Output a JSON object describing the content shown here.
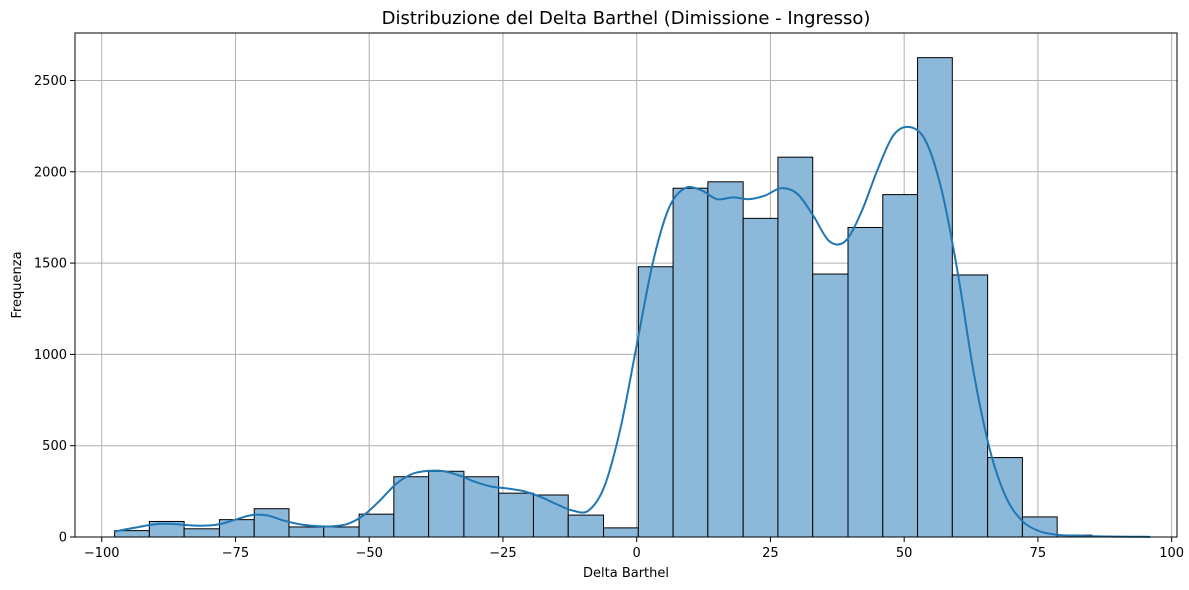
{
  "chart_data": {
    "type": "bar",
    "title": "Distribuzione del Delta Barthel (Dimissione - Ingresso)",
    "xlabel": "Delta Barthel",
    "ylabel": "Frequenza",
    "xlim": [
      -105,
      101
    ],
    "ylim": [
      0,
      2760
    ],
    "x_ticks": [
      -100,
      -75,
      -50,
      -25,
      0,
      25,
      50,
      75,
      100
    ],
    "x_tick_labels": [
      "−100",
      "−75",
      "−50",
      "−25",
      "0",
      "25",
      "50",
      "75",
      "100"
    ],
    "y_ticks": [
      0,
      500,
      1000,
      1500,
      2000,
      2500
    ],
    "y_tick_labels": [
      "0",
      "500",
      "1000",
      "1500",
      "2000",
      "2500"
    ],
    "grid": true,
    "bins": [
      {
        "x0": -97.6,
        "x1": -91.1,
        "count": 35
      },
      {
        "x0": -91.1,
        "x1": -84.6,
        "count": 85
      },
      {
        "x0": -84.6,
        "x1": -78.0,
        "count": 45
      },
      {
        "x0": -78.0,
        "x1": -71.5,
        "count": 95
      },
      {
        "x0": -71.5,
        "x1": -65.0,
        "count": 155
      },
      {
        "x0": -65.0,
        "x1": -58.5,
        "count": 55
      },
      {
        "x0": -58.5,
        "x1": -51.9,
        "count": 55
      },
      {
        "x0": -51.9,
        "x1": -45.4,
        "count": 125
      },
      {
        "x0": -45.4,
        "x1": -38.9,
        "count": 330
      },
      {
        "x0": -38.9,
        "x1": -32.3,
        "count": 360
      },
      {
        "x0": -32.3,
        "x1": -25.8,
        "count": 330
      },
      {
        "x0": -25.8,
        "x1": -19.3,
        "count": 240
      },
      {
        "x0": -19.3,
        "x1": -12.8,
        "count": 230
      },
      {
        "x0": -12.8,
        "x1": -6.2,
        "count": 120
      },
      {
        "x0": -6.2,
        "x1": 0.3,
        "count": 50
      },
      {
        "x0": 0.3,
        "x1": 6.8,
        "count": 1480
      },
      {
        "x0": 6.8,
        "x1": 13.3,
        "count": 1910
      },
      {
        "x0": 13.3,
        "x1": 19.9,
        "count": 1945
      },
      {
        "x0": 19.9,
        "x1": 26.4,
        "count": 1745
      },
      {
        "x0": 26.4,
        "x1": 32.9,
        "count": 2080
      },
      {
        "x0": 32.9,
        "x1": 39.5,
        "count": 1440
      },
      {
        "x0": 39.5,
        "x1": 46.0,
        "count": 1695
      },
      {
        "x0": 46.0,
        "x1": 52.5,
        "count": 1875
      },
      {
        "x0": 52.5,
        "x1": 59.0,
        "count": 2625
      },
      {
        "x0": 59.0,
        "x1": 65.6,
        "count": 1435
      },
      {
        "x0": 65.6,
        "x1": 72.1,
        "count": 435
      },
      {
        "x0": 72.1,
        "x1": 78.6,
        "count": 110
      },
      {
        "x0": 78.6,
        "x1": 85.1,
        "count": 10
      }
    ],
    "kde": {
      "x": [
        -97.6,
        -94,
        -90,
        -87,
        -84,
        -81,
        -78,
        -75,
        -72,
        -69,
        -66,
        -63,
        -60,
        -57,
        -54,
        -51,
        -48,
        -45,
        -42,
        -39,
        -36,
        -33,
        -30,
        -27,
        -24,
        -21,
        -18,
        -15,
        -12,
        -9,
        -6,
        -3,
        0,
        3,
        6,
        9,
        12,
        15,
        18,
        21,
        24,
        27,
        30,
        33,
        36,
        39,
        42,
        45,
        48,
        51,
        54,
        57,
        60,
        63,
        66,
        69,
        72,
        75,
        78,
        81,
        84,
        90,
        96
      ],
      "y": [
        30,
        50,
        70,
        72,
        65,
        62,
        70,
        95,
        120,
        118,
        90,
        70,
        60,
        58,
        72,
        120,
        200,
        290,
        345,
        362,
        360,
        335,
        300,
        275,
        265,
        250,
        220,
        180,
        145,
        145,
        280,
        600,
        1050,
        1500,
        1800,
        1910,
        1900,
        1850,
        1860,
        1850,
        1870,
        1910,
        1880,
        1760,
        1620,
        1620,
        1780,
        2010,
        2200,
        2245,
        2170,
        1900,
        1450,
        900,
        480,
        220,
        90,
        35,
        14,
        8,
        5,
        2,
        1
      ]
    },
    "colors": {
      "bar_fill": "#8cb8da",
      "bar_edge": "#000000",
      "kde_line": "#1f77b4",
      "grid": "#b0b0b0"
    }
  }
}
